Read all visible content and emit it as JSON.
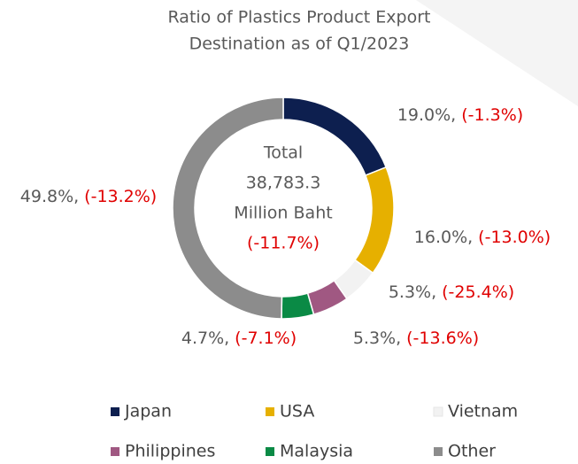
{
  "chart_data": {
    "type": "donut",
    "title": [
      "Ratio of Plastics Product Export",
      "Destination as of Q1/2023"
    ],
    "categories": [
      "Japan",
      "USA",
      "Vietnam",
      "Philippines",
      "Malaysia",
      "Other"
    ],
    "values": [
      19.0,
      16.0,
      5.3,
      5.3,
      4.7,
      49.8
    ],
    "value_labels": [
      "19.0%,",
      "16.0%,",
      "5.3%,",
      "5.3%,",
      "4.7%,",
      "49.8%,"
    ],
    "changes": [
      "(-1.3%)",
      "(-13.0%)",
      "(-25.4%)",
      "(-13.6%)",
      "(-7.1%)",
      "(-13.2%)"
    ],
    "colors": [
      "#0d1f4f",
      "#e6b000",
      "#f2f2f2",
      "#a05882",
      "#0a8a45",
      "#8c8c8c"
    ],
    "center_text": [
      "Total",
      "38,783.3",
      "Million Baht"
    ],
    "center_change": "(-11.7%)",
    "legend": "bottom"
  }
}
